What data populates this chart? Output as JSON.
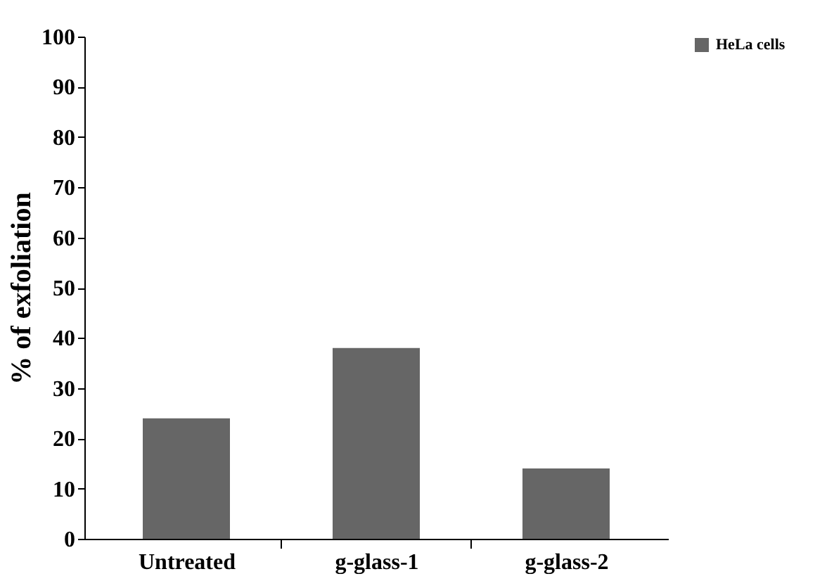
{
  "chart_data": {
    "type": "bar",
    "ylabel": "% of exfoliation",
    "categories": [
      "Untreated",
      "g-glass-1",
      "g-glass-2"
    ],
    "series": [
      {
        "name": "HeLa cells",
        "color": "#666666",
        "values": [
          24,
          38,
          14
        ]
      }
    ],
    "ylim": [
      0,
      100
    ],
    "yticks": [
      0,
      10,
      20,
      30,
      40,
      50,
      60,
      70,
      80,
      90,
      100
    ],
    "grid": false,
    "legend": "right"
  }
}
